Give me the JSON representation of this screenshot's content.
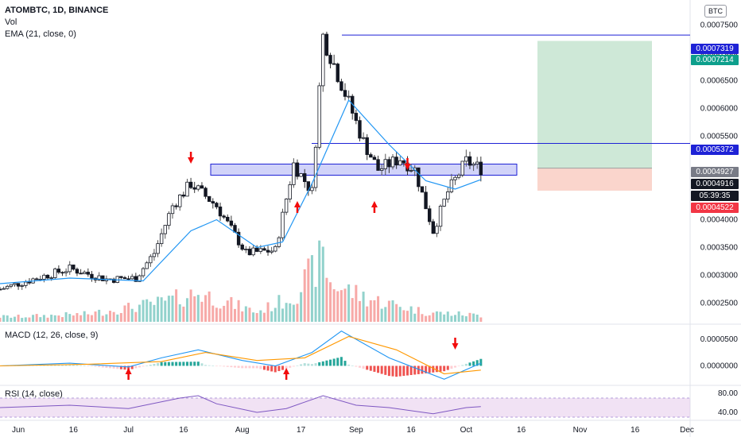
{
  "header": {
    "symbol_line": "ATOMBTC, 1D, BINANCE",
    "vol_label": "Vol",
    "ema_label": "EMA (21, close, 0)",
    "currency_badge": "BTC"
  },
  "macd_pane": {
    "title": "MACD (12, 26, close, 9)"
  },
  "rsi_pane": {
    "title": "RSI (14, close)"
  },
  "price_tags": {
    "upper_line": "0.0007319",
    "target": "0.0007214",
    "mid_line": "0.0005372",
    "entry": "0.0004927",
    "last": "0.0004916",
    "countdown": "05:39:35",
    "stop": "0.0004522"
  },
  "colors": {
    "up": "#26a69a",
    "down": "#ef5350",
    "ema": "#2196f3",
    "signal": "#ff9800",
    "zone": "#3f51ff",
    "target_fill": "#a5d6b7",
    "stop_fill": "#f8c3b6",
    "rsi_line": "#7e57c2",
    "arrow": "#f20c0c"
  },
  "chart_data": [
    {
      "type": "candlestick",
      "title": "ATOMBTC, 1D, BINANCE",
      "x_tick_labels": [
        "Jun",
        "16",
        "Jul",
        "16",
        "Aug",
        "17",
        "Sep",
        "16",
        "Oct",
        "16",
        "Nov",
        "16",
        "Dec"
      ],
      "x_range": [
        "2019-05-27",
        "2019-12-01"
      ],
      "y_tick_labels": [
        "0.0007500",
        "0.0007000",
        "0.0006500",
        "0.0006000",
        "0.0005500",
        "0.0005000",
        "0.0004500",
        "0.0004000",
        "0.0003500",
        "0.0003000",
        "0.0002500"
      ],
      "ylim": [
        0.000215,
        0.000795
      ],
      "close_trend": [
        [
          "2019-05-27",
          0.000275
        ],
        [
          "2019-06-05",
          0.000293
        ],
        [
          "2019-06-15",
          0.000312
        ],
        [
          "2019-06-25",
          0.000293
        ],
        [
          "2019-07-03",
          0.000295
        ],
        [
          "2019-07-08",
          0.00034
        ],
        [
          "2019-07-13",
          0.000425
        ],
        [
          "2019-07-18",
          0.000465
        ],
        [
          "2019-07-25",
          0.000425
        ],
        [
          "2019-08-02",
          0.00034
        ],
        [
          "2019-08-10",
          0.000345
        ],
        [
          "2019-08-15",
          0.0005
        ],
        [
          "2019-08-20",
          0.00045
        ],
        [
          "2019-08-23",
          0.00073
        ],
        [
          "2019-08-28",
          0.000645
        ],
        [
          "2019-09-03",
          0.00054
        ],
        [
          "2019-09-07",
          0.00049
        ],
        [
          "2019-09-13",
          0.00051
        ],
        [
          "2019-09-17",
          0.00049
        ],
        [
          "2019-09-22",
          0.00038
        ],
        [
          "2019-09-26",
          0.00045
        ],
        [
          "2019-10-01",
          0.000505
        ],
        [
          "2019-10-05",
          0.000492
        ]
      ],
      "ema": [
        [
          "2019-05-27",
          0.000285
        ],
        [
          "2019-06-15",
          0.000295
        ],
        [
          "2019-07-05",
          0.00029
        ],
        [
          "2019-07-18",
          0.00038
        ],
        [
          "2019-07-25",
          0.0004
        ],
        [
          "2019-08-05",
          0.00035
        ],
        [
          "2019-08-12",
          0.00036
        ],
        [
          "2019-08-20",
          0.000465
        ],
        [
          "2019-08-30",
          0.000615
        ],
        [
          "2019-09-10",
          0.000535
        ],
        [
          "2019-09-20",
          0.00047
        ],
        [
          "2019-09-28",
          0.000455
        ],
        [
          "2019-10-05",
          0.000472
        ]
      ],
      "horizontal_lines": [
        0.0007319,
        0.0005372
      ],
      "resistance_zone": [
        0.00048,
        0.0005
      ],
      "long_position": {
        "entry": 0.0004927,
        "target": 0.0007214,
        "stop": 0.0004522
      },
      "arrows": [
        {
          "date": "2019-07-18",
          "direction": "down"
        },
        {
          "date": "2019-08-16",
          "direction": "up"
        },
        {
          "date": "2019-09-06",
          "direction": "up"
        },
        {
          "date": "2019-09-15",
          "direction": "down"
        }
      ]
    },
    {
      "type": "bar",
      "title": "Vol",
      "note": "volume histogram, relative heights (0-1)",
      "points": [
        [
          "2019-06-01",
          0.08
        ],
        [
          "2019-06-20",
          0.12
        ],
        [
          "2019-07-10",
          0.3
        ],
        [
          "2019-07-20",
          0.45
        ],
        [
          "2019-08-05",
          0.15
        ],
        [
          "2019-08-15",
          0.4
        ],
        [
          "2019-08-23",
          1.0
        ],
        [
          "2019-08-25",
          0.6
        ],
        [
          "2019-09-05",
          0.35
        ],
        [
          "2019-09-20",
          0.15
        ],
        [
          "2019-10-05",
          0.1
        ]
      ]
    },
    {
      "type": "line",
      "title": "MACD (12, 26, close, 9)",
      "y_tick_labels": [
        "0.0000500",
        "0.0000000"
      ],
      "ylim": [
        -3.5e-05,
        7.5e-05
      ],
      "macd": [
        [
          "2019-05-27",
          0.0
        ],
        [
          "2019-06-15",
          5e-06
        ],
        [
          "2019-07-01",
          -2e-06
        ],
        [
          "2019-07-10",
          1.5e-05
        ],
        [
          "2019-07-20",
          3e-05
        ],
        [
          "2019-08-01",
          1e-05
        ],
        [
          "2019-08-10",
          0.0
        ],
        [
          "2019-08-20",
          2.5e-05
        ],
        [
          "2019-08-28",
          6.5e-05
        ],
        [
          "2019-09-10",
          1.5e-05
        ],
        [
          "2019-09-25",
          -2.5e-05
        ],
        [
          "2019-10-05",
          5e-06
        ]
      ],
      "signal": [
        [
          "2019-05-27",
          0.0
        ],
        [
          "2019-06-20",
          3e-06
        ],
        [
          "2019-07-10",
          8e-06
        ],
        [
          "2019-07-22",
          2.5e-05
        ],
        [
          "2019-08-05",
          1e-05
        ],
        [
          "2019-08-18",
          1.5e-05
        ],
        [
          "2019-08-30",
          5.5e-05
        ],
        [
          "2019-09-12",
          3e-05
        ],
        [
          "2019-09-25",
          -1.5e-05
        ],
        [
          "2019-10-05",
          -8e-06
        ]
      ],
      "arrows": [
        {
          "date": "2019-07-01",
          "direction": "up"
        },
        {
          "date": "2019-08-13",
          "direction": "up"
        },
        {
          "date": "2019-09-28",
          "direction": "down"
        }
      ]
    },
    {
      "type": "line",
      "title": "RSI (14, close)",
      "y_tick_labels": [
        "80.00",
        "40.00"
      ],
      "ylim": [
        25,
        95
      ],
      "band": [
        30,
        70
      ],
      "points": [
        [
          "2019-05-27",
          50
        ],
        [
          "2019-06-15",
          55
        ],
        [
          "2019-07-01",
          48
        ],
        [
          "2019-07-15",
          70
        ],
        [
          "2019-07-20",
          75
        ],
        [
          "2019-07-25",
          58
        ],
        [
          "2019-08-05",
          40
        ],
        [
          "2019-08-13",
          48
        ],
        [
          "2019-08-23",
          75
        ],
        [
          "2019-09-01",
          55
        ],
        [
          "2019-09-10",
          50
        ],
        [
          "2019-09-22",
          37
        ],
        [
          "2019-10-01",
          50
        ],
        [
          "2019-10-05",
          52
        ]
      ]
    }
  ]
}
